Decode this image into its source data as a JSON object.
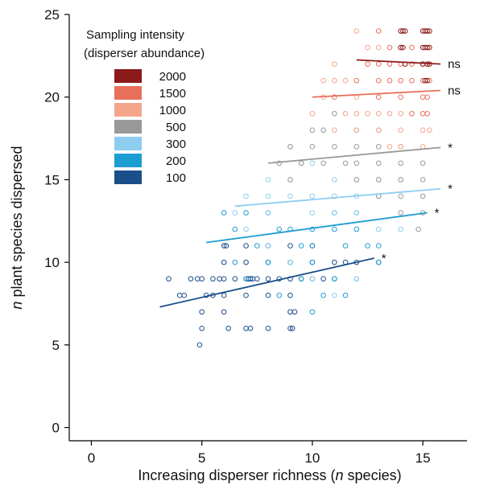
{
  "chart_data": {
    "type": "scatter",
    "title": "",
    "xlabel_parts": [
      "Increasing disperser richness (",
      "n",
      " species)"
    ],
    "ylabel_parts": [
      "n",
      " plant species dispersed"
    ],
    "xlim": [
      -1,
      17
    ],
    "ylim": [
      -0.8,
      25
    ],
    "xticks": [
      0,
      5,
      10,
      15
    ],
    "yticks": [
      0,
      5,
      10,
      15,
      20,
      25
    ],
    "legend": {
      "title_lines": [
        "Sampling intensity",
        "(disperser abundance)"
      ],
      "placement": "top-left"
    },
    "series": [
      {
        "name": "2000",
        "color": "#8b1a1a",
        "points": [
          [
            14,
            24
          ],
          [
            14.1,
            24
          ],
          [
            14.2,
            24
          ],
          [
            15,
            24
          ],
          [
            15.1,
            24
          ],
          [
            15.2,
            24
          ],
          [
            15.3,
            24
          ],
          [
            15,
            23
          ],
          [
            15.1,
            23
          ],
          [
            15.2,
            23
          ],
          [
            15.3,
            23
          ],
          [
            14.1,
            23
          ],
          [
            14,
            23
          ],
          [
            15,
            22
          ],
          [
            15.2,
            22
          ],
          [
            15.3,
            22
          ],
          [
            15.1,
            21
          ],
          [
            15.2,
            21
          ],
          [
            14.2,
            22
          ]
        ],
        "fit": {
          "x": [
            12,
            15.8
          ],
          "y": [
            22.25,
            22
          ]
        },
        "annotation": "ns"
      },
      {
        "name": "1500",
        "color": "#e8705a",
        "points": [
          [
            13,
            24
          ],
          [
            13.5,
            23
          ],
          [
            14,
            23
          ],
          [
            14.5,
            23
          ],
          [
            13.5,
            22
          ],
          [
            14,
            22
          ],
          [
            14.5,
            22
          ],
          [
            15,
            22
          ],
          [
            13,
            22
          ],
          [
            12,
            21
          ],
          [
            13,
            21
          ],
          [
            13.5,
            21
          ],
          [
            14,
            21
          ],
          [
            14.5,
            21
          ],
          [
            15,
            21
          ],
          [
            15.3,
            21
          ],
          [
            14,
            20
          ],
          [
            15,
            20
          ],
          [
            15.2,
            20
          ],
          [
            13,
            20
          ],
          [
            12.5,
            22
          ],
          [
            15,
            19
          ],
          [
            14.5,
            19
          ],
          [
            15.2,
            19
          ],
          [
            11,
            20
          ]
        ],
        "fit": {
          "x": [
            10,
            15.8
          ],
          "y": [
            20,
            20.4
          ]
        },
        "annotation": "ns"
      },
      {
        "name": "1000",
        "color": "#f5a58a",
        "points": [
          [
            12,
            24
          ],
          [
            12.5,
            23
          ],
          [
            13,
            23
          ],
          [
            11,
            21
          ],
          [
            10.5,
            20
          ],
          [
            11.5,
            19
          ],
          [
            12,
            19
          ],
          [
            12.5,
            19
          ],
          [
            13,
            19
          ],
          [
            13.5,
            19
          ],
          [
            14,
            19
          ],
          [
            10,
            19
          ],
          [
            11,
            18
          ],
          [
            12,
            18
          ],
          [
            13,
            18
          ],
          [
            14,
            18
          ],
          [
            15,
            18
          ],
          [
            15.3,
            18
          ],
          [
            14,
            17
          ],
          [
            13.5,
            17
          ],
          [
            15,
            17
          ],
          [
            11,
            22
          ],
          [
            10.5,
            21
          ],
          [
            12,
            20
          ],
          [
            11.5,
            21
          ]
        ],
        "fit": null,
        "annotation": ""
      },
      {
        "name": "500",
        "color": "#999999",
        "points": [
          [
            10,
            18
          ],
          [
            10,
            17
          ],
          [
            9,
            17
          ],
          [
            8.5,
            16
          ],
          [
            9.5,
            16
          ],
          [
            10.5,
            16
          ],
          [
            11,
            17
          ],
          [
            12,
            17
          ],
          [
            13,
            17
          ],
          [
            14,
            17
          ],
          [
            11.5,
            16
          ],
          [
            12,
            16
          ],
          [
            13,
            16
          ],
          [
            14,
            16
          ],
          [
            15,
            16
          ],
          [
            12,
            15
          ],
          [
            13,
            15
          ],
          [
            14,
            15
          ],
          [
            15,
            15
          ],
          [
            13,
            14
          ],
          [
            14,
            14
          ],
          [
            15,
            14
          ],
          [
            14,
            13
          ],
          [
            15,
            13
          ],
          [
            14.8,
            12
          ],
          [
            10.5,
            18
          ],
          [
            11,
            19
          ],
          [
            12,
            18
          ],
          [
            13,
            18
          ],
          [
            9,
            15
          ]
        ],
        "fit": {
          "x": [
            8,
            15.8
          ],
          "y": [
            16,
            16.95
          ]
        },
        "annotation": "*"
      },
      {
        "name": "300",
        "color": "#8ecdf0",
        "points": [
          [
            7,
            14
          ],
          [
            8,
            15
          ],
          [
            9,
            15
          ],
          [
            9.5,
            16
          ],
          [
            10,
            16
          ],
          [
            9,
            17
          ],
          [
            8,
            14
          ],
          [
            9,
            14
          ],
          [
            10,
            14
          ],
          [
            11,
            14
          ],
          [
            12,
            14
          ],
          [
            13,
            14
          ],
          [
            11,
            15
          ],
          [
            12,
            15
          ],
          [
            13,
            15
          ],
          [
            14,
            15
          ],
          [
            8,
            13
          ],
          [
            10,
            13
          ],
          [
            11,
            13
          ],
          [
            12,
            13
          ],
          [
            13,
            12
          ],
          [
            14,
            12
          ],
          [
            7,
            12
          ],
          [
            8,
            11
          ],
          [
            9,
            10
          ],
          [
            10,
            9
          ],
          [
            11,
            8
          ],
          [
            12,
            9
          ],
          [
            6.5,
            13
          ]
        ],
        "fit": {
          "x": [
            6.5,
            15.8
          ],
          "y": [
            13.4,
            14.45
          ]
        },
        "annotation": "*"
      },
      {
        "name": "200",
        "color": "#1e9dd2",
        "points": [
          [
            6,
            13
          ],
          [
            6.5,
            12
          ],
          [
            7,
            13
          ],
          [
            8,
            13
          ],
          [
            8.5,
            12
          ],
          [
            9,
            12
          ],
          [
            9.5,
            11
          ],
          [
            10,
            11
          ],
          [
            10,
            12
          ],
          [
            11,
            12
          ],
          [
            11,
            13
          ],
          [
            12,
            12
          ],
          [
            12,
            13
          ],
          [
            12.5,
            11
          ],
          [
            13,
            11
          ],
          [
            11.5,
            11
          ],
          [
            7.5,
            11
          ],
          [
            8,
            10
          ],
          [
            9,
            10
          ],
          [
            10,
            10
          ],
          [
            11,
            9
          ],
          [
            12,
            9
          ],
          [
            11.5,
            8
          ],
          [
            10.5,
            8
          ],
          [
            10,
            7
          ],
          [
            7,
            9
          ],
          [
            8.5,
            8
          ],
          [
            9.5,
            9
          ],
          [
            6.5,
            10
          ],
          [
            13,
            10
          ]
        ],
        "fit": {
          "x": [
            5.2,
            15.2
          ],
          "y": [
            11.2,
            13
          ]
        },
        "annotation": "*"
      },
      {
        "name": "100",
        "color": "#1b4f8a",
        "points": [
          [
            4.5,
            9
          ],
          [
            4,
            8
          ],
          [
            4.2,
            8
          ],
          [
            4.8,
            9
          ],
          [
            5,
            9
          ],
          [
            5.2,
            8
          ],
          [
            5,
            7
          ],
          [
            5.5,
            8
          ],
          [
            5.5,
            9
          ],
          [
            6,
            9
          ],
          [
            6,
            8
          ],
          [
            6,
            7
          ],
          [
            6.2,
            6
          ],
          [
            6,
            10
          ],
          [
            6,
            11
          ],
          [
            7,
            9
          ],
          [
            7.1,
            9
          ],
          [
            7.2,
            9
          ],
          [
            7,
            8
          ],
          [
            7,
            6
          ],
          [
            7.2,
            6
          ],
          [
            7,
            11
          ],
          [
            7,
            10
          ],
          [
            7.5,
            9
          ],
          [
            8,
            9
          ],
          [
            8,
            8
          ],
          [
            8,
            10
          ],
          [
            8,
            11
          ],
          [
            8,
            6
          ],
          [
            9,
            9
          ],
          [
            9,
            10
          ],
          [
            9,
            11
          ],
          [
            9,
            8
          ],
          [
            9,
            7
          ],
          [
            9.2,
            7
          ],
          [
            9,
            6
          ],
          [
            9.5,
            9
          ],
          [
            10,
            9
          ],
          [
            10,
            10
          ],
          [
            10,
            11
          ],
          [
            10.5,
            9
          ],
          [
            11,
            10
          ],
          [
            11,
            9
          ],
          [
            11.5,
            10
          ],
          [
            12,
            10
          ],
          [
            13,
            10
          ],
          [
            3.5,
            9
          ],
          [
            4.9,
            5
          ],
          [
            5.8,
            9
          ],
          [
            6.5,
            9
          ],
          [
            8.5,
            9
          ],
          [
            9.1,
            6
          ],
          [
            5,
            6
          ],
          [
            6.1,
            11
          ],
          [
            7.3,
            9
          ]
        ],
        "fit": {
          "x": [
            3.1,
            12.8
          ],
          "y": [
            7.3,
            10.25
          ]
        },
        "annotation": "*"
      }
    ]
  }
}
